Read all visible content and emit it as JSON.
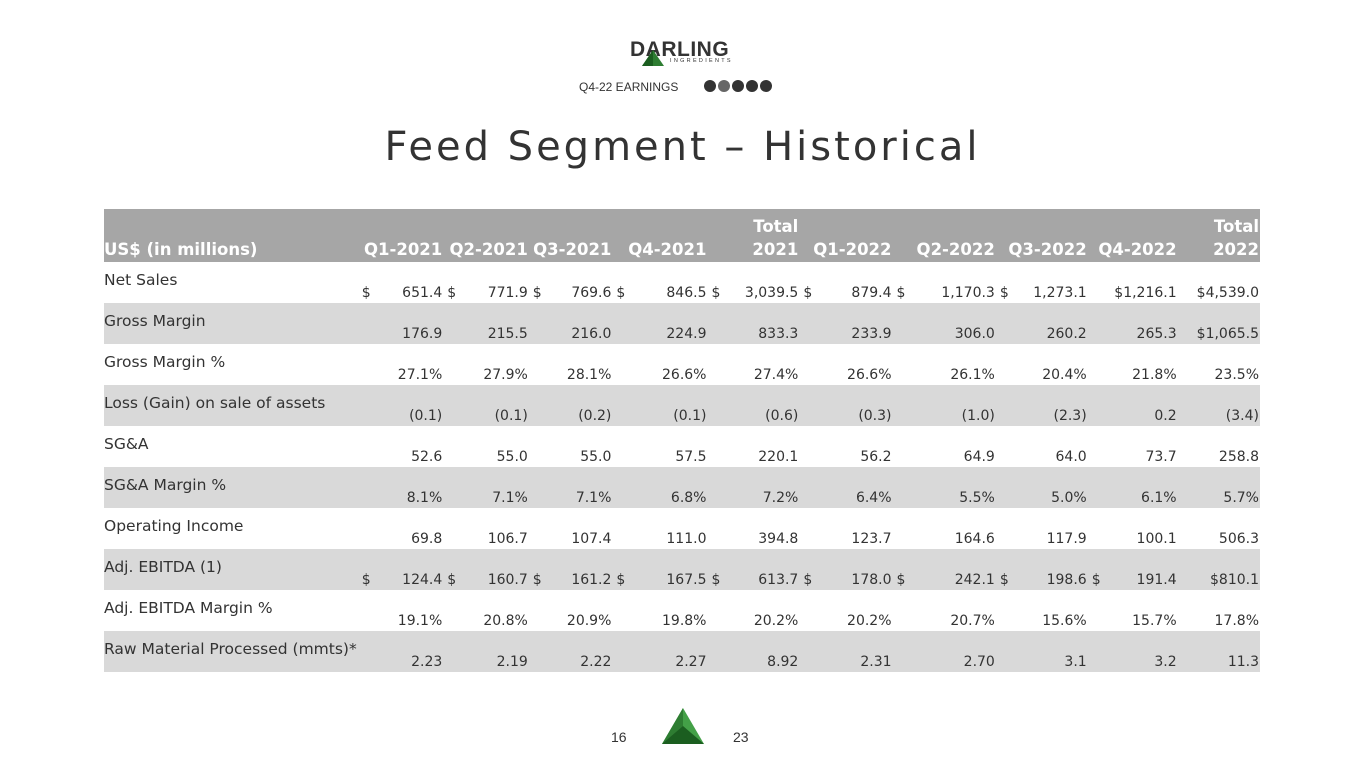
{
  "logo": {
    "word": "DARLING",
    "sub": "INGREDIENTS"
  },
  "header": {
    "earnings": "Q4-22 EARNINGS"
  },
  "title": "Feed Segment – Historical",
  "table": {
    "headers": [
      "US$ (in millions)",
      "Q1-2021",
      "Q2-2021",
      "Q3-2021",
      "Q4-2021",
      "Total\n2021",
      "Q1-2022",
      "Q2-2022",
      "Q3-2022",
      "Q4-2022",
      "Total\n2022"
    ],
    "rows": [
      {
        "label": "Net Sales",
        "cur": [
          "$",
          "$",
          "$",
          "$",
          "$",
          "$",
          "$",
          "$",
          "",
          ""
        ],
        "values": [
          "651.4",
          "771.9",
          "769.6",
          "846.5",
          "3,039.5",
          "879.4",
          "1,170.3",
          "1,273.1",
          "$1,216.1",
          "$4,539.0"
        ]
      },
      {
        "label": "Gross Margin",
        "cur": [
          "",
          "",
          "",
          "",
          "",
          "",
          "",
          "",
          "",
          ""
        ],
        "values": [
          "176.9",
          "215.5",
          "216.0",
          "224.9",
          "833.3",
          "233.9",
          "306.0",
          "260.2",
          "265.3",
          "$1,065.5"
        ]
      },
      {
        "label": "Gross Margin %",
        "cur": [
          "",
          "",
          "",
          "",
          "",
          "",
          "",
          "",
          "",
          ""
        ],
        "values": [
          "27.1%",
          "27.9%",
          "28.1%",
          "26.6%",
          "27.4%",
          "26.6%",
          "26.1%",
          "20.4%",
          "21.8%",
          "23.5%"
        ]
      },
      {
        "label": "Loss (Gain) on sale of assets",
        "cur": [
          "",
          "",
          "",
          "",
          "",
          "",
          "",
          "",
          "",
          ""
        ],
        "values": [
          "(0.1)",
          "(0.1)",
          "(0.2)",
          "(0.1)",
          "(0.6)",
          "(0.3)",
          "(1.0)",
          "(2.3)",
          "0.2",
          "(3.4)"
        ]
      },
      {
        "label": "SG&A",
        "cur": [
          "",
          "",
          "",
          "",
          "",
          "",
          "",
          "",
          "",
          ""
        ],
        "values": [
          "52.6",
          "55.0",
          "55.0",
          "57.5",
          "220.1",
          "56.2",
          "64.9",
          "64.0",
          "73.7",
          "258.8"
        ]
      },
      {
        "label": "SG&A Margin %",
        "cur": [
          "",
          "",
          "",
          "",
          "",
          "",
          "",
          "",
          "",
          ""
        ],
        "values": [
          "8.1%",
          "7.1%",
          "7.1%",
          "6.8%",
          "7.2%",
          "6.4%",
          "5.5%",
          "5.0%",
          "6.1%",
          "5.7%"
        ]
      },
      {
        "label": "Operating Income",
        "cur": [
          "",
          "",
          "",
          "",
          "",
          "",
          "",
          "",
          "",
          ""
        ],
        "values": [
          "69.8",
          "106.7",
          "107.4",
          "111.0",
          "394.8",
          "123.7",
          "164.6",
          "117.9",
          "100.1",
          "506.3"
        ]
      },
      {
        "label": "Adj. EBITDA (1)",
        "cur": [
          "$",
          "$",
          "$",
          "$",
          "$",
          "$",
          "$",
          "$",
          "$",
          ""
        ],
        "values": [
          "124.4",
          "160.7",
          "161.2",
          "167.5",
          "613.7",
          "178.0",
          "242.1",
          "198.6",
          "191.4",
          "$810.1"
        ]
      },
      {
        "label": "Adj. EBITDA Margin %",
        "cur": [
          "",
          "",
          "",
          "",
          "",
          "",
          "",
          "",
          "",
          ""
        ],
        "values": [
          "19.1%",
          "20.8%",
          "20.9%",
          "19.8%",
          "20.2%",
          "20.2%",
          "20.7%",
          "15.6%",
          "15.7%",
          "17.8%"
        ]
      },
      {
        "label": "Raw Material Processed (mmts)*",
        "cur": [
          "",
          "",
          "",
          "",
          "",
          "",
          "",
          "",
          "",
          ""
        ],
        "values": [
          "2.23",
          "2.19",
          "2.22",
          "2.27",
          "8.92",
          "2.31",
          "2.70",
          "3.1",
          "3.2",
          "11.3"
        ]
      }
    ]
  },
  "footer": {
    "left": "16",
    "right": "23"
  },
  "colors": {
    "header_bg": "#a6a6a6",
    "stripe": "#d9d9d9",
    "brand_green": "#2e7d32"
  }
}
